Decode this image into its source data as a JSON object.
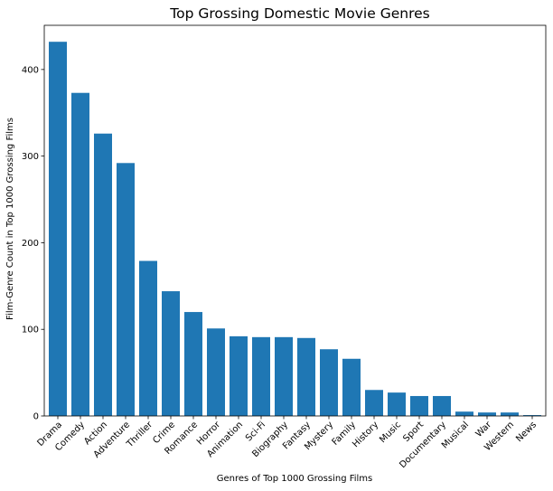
{
  "chart_data": {
    "type": "bar",
    "title": "Top Grossing Domestic Movie Genres",
    "xlabel": "Genres of Top 1000 Grossing Films",
    "ylabel": "Film-Genre Count in Top 1000 Grossing Films",
    "categories": [
      "Drama",
      "Comedy",
      "Action",
      "Adventure",
      "Thriller",
      "Crime",
      "Romance",
      "Horror",
      "Animation",
      "Sci-Fi",
      "Biography",
      "Fantasy",
      "Mystery",
      "Family",
      "History",
      "Music",
      "Sport",
      "Documentary",
      "Musical",
      "War",
      "Western",
      "News"
    ],
    "values": [
      432,
      373,
      326,
      292,
      179,
      144,
      120,
      101,
      92,
      91,
      91,
      90,
      77,
      66,
      30,
      27,
      23,
      23,
      5,
      4,
      4,
      1
    ],
    "ylim": [
      0,
      451
    ],
    "yticks": [
      0,
      100,
      200,
      300,
      400
    ],
    "grid": false,
    "legend": "none",
    "colors": {
      "bar": "#1f77b4",
      "axis": "#000000",
      "background": "#ffffff"
    }
  }
}
